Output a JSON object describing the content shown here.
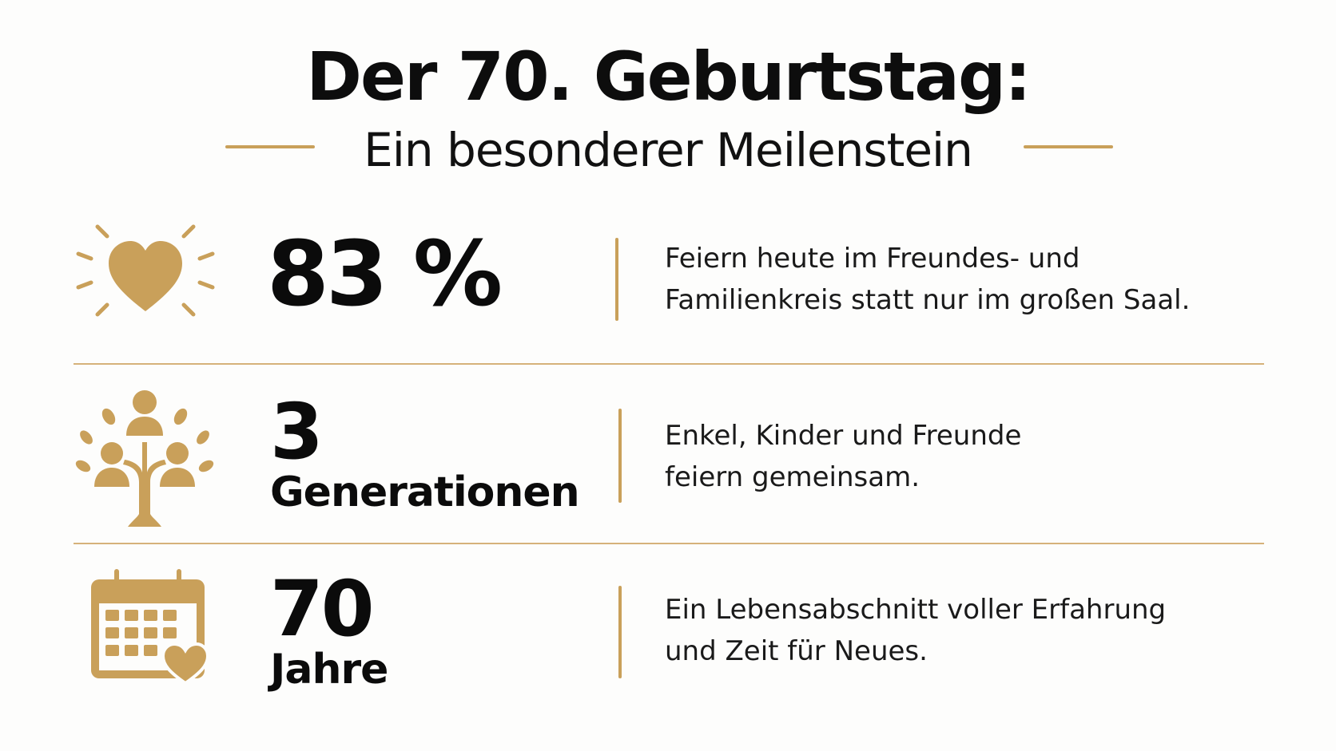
{
  "header": {
    "title": "Der 70. Geburtstag:",
    "subtitle": "Ein besonderer Meilenstein"
  },
  "colors": {
    "accent": "#c9a05a",
    "text": "#0b0b0b",
    "background": "#fdfdfc"
  },
  "stats": [
    {
      "icon": "heart-radiating-icon",
      "value": "83 %",
      "unit": "",
      "description_line1": "Feiern heute im Freundes- und",
      "description_line2": "Familienkreis statt nur im großen Saal."
    },
    {
      "icon": "family-tree-icon",
      "value": "3",
      "unit": "Generationen",
      "description_line1": "Enkel, Kinder und Freunde",
      "description_line2": "feiern gemeinsam."
    },
    {
      "icon": "calendar-heart-icon",
      "value": "70",
      "unit": "Jahre",
      "description_line1": "Ein Lebensabschnitt voller Erfahrung",
      "description_line2": "und Zeit für Neues."
    }
  ]
}
